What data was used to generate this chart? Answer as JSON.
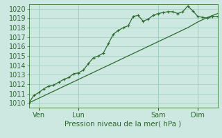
{
  "xlabel": "Pression niveau de la mer( hPa )",
  "background_color": "#cce8e0",
  "grid_color": "#99ccbb",
  "line_color": "#2d6a2d",
  "ylim": [
    1009.5,
    1020.5
  ],
  "yticks": [
    1010,
    1011,
    1012,
    1013,
    1014,
    1015,
    1016,
    1017,
    1018,
    1019,
    1020
  ],
  "xtick_labels": [
    "Ven",
    "Lun",
    "Sam",
    "Dim"
  ],
  "xtick_positions": [
    6,
    30,
    78,
    102
  ],
  "xlim": [
    0,
    114
  ],
  "line1_x": [
    0,
    6,
    12,
    18,
    24,
    30,
    36,
    42,
    48,
    54,
    60,
    66,
    72,
    78,
    84,
    90,
    96,
    102,
    108,
    114
  ],
  "line1_y": [
    1010.0,
    1010.5,
    1011.0,
    1011.5,
    1012.0,
    1012.5,
    1013.0,
    1013.5,
    1014.0,
    1014.5,
    1015.0,
    1015.5,
    1016.0,
    1016.5,
    1017.0,
    1017.5,
    1018.0,
    1018.6,
    1019.1,
    1019.5
  ],
  "line2_x": [
    0,
    3,
    6,
    9,
    12,
    15,
    18,
    21,
    24,
    27,
    30,
    33,
    36,
    39,
    42,
    45,
    48,
    51,
    54,
    57,
    60,
    63,
    66,
    69,
    72,
    75,
    78,
    81,
    84,
    87,
    90,
    93,
    96,
    99,
    102,
    105,
    108,
    111,
    114
  ],
  "line2_y": [
    1010.0,
    1010.8,
    1011.1,
    1011.5,
    1011.8,
    1011.9,
    1012.2,
    1012.5,
    1012.7,
    1013.1,
    1013.2,
    1013.5,
    1014.2,
    1014.8,
    1015.0,
    1015.3,
    1016.3,
    1017.3,
    1017.7,
    1018.0,
    1018.2,
    1019.2,
    1019.3,
    1018.7,
    1018.9,
    1019.3,
    1019.5,
    1019.6,
    1019.7,
    1019.7,
    1019.5,
    1019.7,
    1020.3,
    1019.8,
    1019.2,
    1019.1,
    1019.0,
    1019.2,
    1019.2
  ],
  "font_size": 7.5,
  "tick_font_size": 7
}
